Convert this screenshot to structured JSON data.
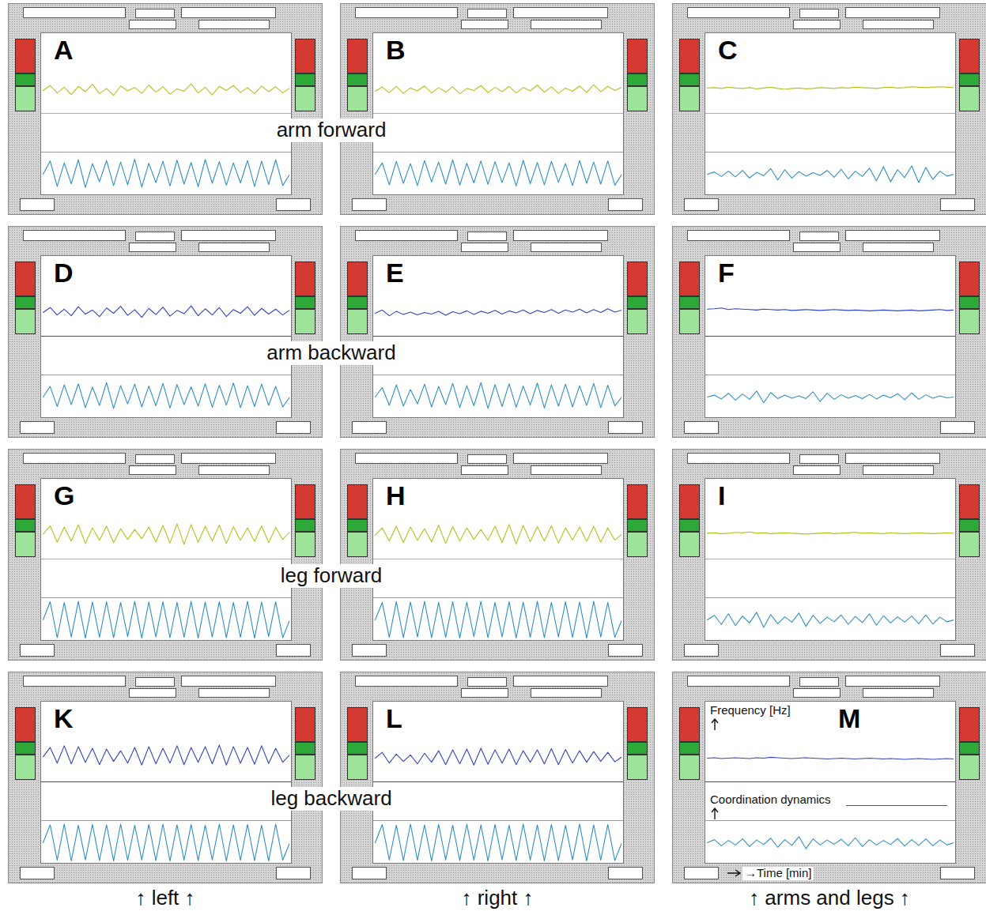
{
  "row_labels": [
    "arm forward",
    "arm backward",
    "leg forward",
    "leg backward"
  ],
  "column_labels": [
    "↑ left ↑",
    "↑ right ↑",
    "↑ arms and legs ↑"
  ],
  "chart_data": [
    {
      "type": "line",
      "title": "A",
      "ylim": [
        0,
        100
      ],
      "tick_labels": false,
      "series": [
        {
          "color": "#b5c21c",
          "values": [
            50,
            62,
            44,
            58,
            40,
            60,
            47,
            65,
            42,
            55,
            38,
            61,
            49,
            57,
            43,
            63,
            46,
            59,
            41,
            54,
            48,
            66,
            44,
            58,
            39,
            60,
            50,
            62,
            45,
            57,
            42,
            61,
            47,
            59,
            44,
            56
          ]
        },
        {
          "color": "#2f8fc4",
          "values": [
            50,
            85,
            18,
            80,
            25,
            88,
            15,
            78,
            30,
            86,
            20,
            82,
            22,
            90,
            16,
            79,
            28,
            84,
            19,
            87,
            24,
            81,
            17,
            89,
            26,
            83,
            21,
            80,
            27,
            86,
            18,
            84,
            23,
            88,
            20,
            50
          ]
        }
      ]
    },
    {
      "type": "line",
      "title": "B",
      "ylim": [
        0,
        100
      ],
      "tick_labels": false,
      "series": [
        {
          "color": "#b5c21c",
          "values": [
            48,
            58,
            45,
            60,
            43,
            56,
            49,
            61,
            44,
            57,
            46,
            59,
            42,
            55,
            50,
            62,
            45,
            58,
            47,
            60,
            44,
            57,
            49,
            63,
            46,
            59,
            43,
            56,
            48,
            61,
            45,
            64,
            47,
            60,
            50,
            58
          ]
        },
        {
          "color": "#2f8fc4",
          "values": [
            50,
            80,
            22,
            84,
            26,
            78,
            20,
            86,
            30,
            82,
            24,
            88,
            21,
            79,
            27,
            85,
            23,
            83,
            28,
            80,
            19,
            87,
            25,
            81,
            22,
            84,
            29,
            78,
            20,
            86,
            26,
            82,
            24,
            85,
            21,
            50
          ]
        }
      ]
    },
    {
      "type": "line",
      "title": "C",
      "ylim": [
        0,
        100
      ],
      "tick_labels": false,
      "series": [
        {
          "color": "#b5c21c",
          "values": [
            56,
            57,
            55,
            58,
            56,
            55,
            57,
            54,
            56,
            58,
            55,
            53,
            55,
            56,
            54,
            55,
            57,
            56,
            55,
            57,
            56,
            58,
            57,
            56,
            55,
            57,
            58,
            56,
            57,
            59,
            58,
            57,
            58,
            59,
            58,
            57
          ]
        },
        {
          "color": "#2f8fc4",
          "values": [
            50,
            56,
            44,
            58,
            43,
            60,
            40,
            55,
            46,
            65,
            35,
            62,
            40,
            57,
            45,
            54,
            47,
            60,
            42,
            63,
            38,
            58,
            44,
            66,
            33,
            70,
            30,
            62,
            41,
            72,
            28,
            68,
            36,
            58,
            45,
            50
          ]
        }
      ]
    },
    {
      "type": "line",
      "title": "D",
      "ylim": [
        0,
        100
      ],
      "tick_labels": false,
      "series": [
        {
          "color": "#3344c0",
          "values": [
            52,
            64,
            46,
            60,
            44,
            66,
            48,
            58,
            42,
            63,
            50,
            67,
            45,
            59,
            40,
            62,
            47,
            65,
            43,
            57,
            49,
            68,
            44,
            61,
            46,
            64,
            42,
            59,
            50,
            66,
            45,
            62,
            48,
            60,
            46,
            58
          ]
        },
        {
          "color": "#2f8fc4",
          "values": [
            50,
            78,
            25,
            82,
            30,
            85,
            22,
            76,
            28,
            88,
            20,
            80,
            32,
            84,
            24,
            79,
            27,
            86,
            21,
            83,
            30,
            77,
            26,
            85,
            23,
            81,
            29,
            87,
            22,
            80,
            25,
            84,
            28,
            78,
            24,
            50
          ]
        }
      ]
    },
    {
      "type": "line",
      "title": "E",
      "ylim": [
        0,
        100
      ],
      "tick_labels": false,
      "series": [
        {
          "color": "#3344c0",
          "values": [
            50,
            58,
            44,
            55,
            47,
            53,
            46,
            52,
            48,
            55,
            45,
            54,
            49,
            56,
            47,
            55,
            50,
            57,
            48,
            56,
            51,
            58,
            49,
            57,
            52,
            59,
            50,
            58,
            53,
            60,
            51,
            59,
            52,
            61,
            53,
            58
          ]
        },
        {
          "color": "#2f8fc4",
          "values": [
            50,
            75,
            28,
            82,
            26,
            70,
            32,
            84,
            24,
            78,
            30,
            86,
            22,
            80,
            27,
            88,
            20,
            83,
            25,
            85,
            23,
            79,
            29,
            87,
            21,
            82,
            26,
            84,
            24,
            80,
            28,
            86,
            22,
            81,
            27,
            50
          ]
        }
      ]
    },
    {
      "type": "line",
      "title": "F",
      "ylim": [
        0,
        100
      ],
      "tick_labels": false,
      "series": [
        {
          "color": "#3344c0",
          "values": [
            60,
            61,
            63,
            59,
            61,
            60,
            59,
            58,
            60,
            59,
            58,
            59,
            57,
            58,
            59,
            58,
            57,
            58,
            59,
            58,
            57,
            58,
            57,
            56,
            57,
            58,
            57,
            56,
            57,
            58,
            56,
            57,
            58,
            59,
            57,
            58
          ]
        },
        {
          "color": "#2f8fc4",
          "values": [
            50,
            55,
            45,
            60,
            42,
            58,
            44,
            66,
            35,
            62,
            46,
            55,
            47,
            53,
            46,
            64,
            38,
            60,
            44,
            56,
            47,
            54,
            46,
            57,
            45,
            55,
            48,
            59,
            43,
            61,
            44,
            56,
            47,
            53,
            48,
            50
          ]
        }
      ]
    },
    {
      "type": "line",
      "title": "G",
      "ylim": [
        0,
        100
      ],
      "tick_labels": false,
      "series": [
        {
          "color": "#b5c21c",
          "values": [
            55,
            75,
            35,
            72,
            38,
            78,
            32,
            70,
            40,
            74,
            34,
            68,
            42,
            66,
            44,
            72,
            36,
            76,
            33,
            80,
            30,
            78,
            35,
            74,
            38,
            77,
            32,
            73,
            40,
            70,
            37,
            75,
            34,
            71,
            42,
            60
          ]
        },
        {
          "color": "#2f8fc4",
          "values": [
            50,
            98,
            3,
            96,
            5,
            99,
            2,
            97,
            4,
            98,
            3,
            96,
            6,
            99,
            2,
            97,
            5,
            98,
            3,
            96,
            4,
            99,
            2,
            97,
            5,
            98,
            3,
            96,
            4,
            99,
            2,
            97,
            6,
            98,
            3,
            50
          ]
        }
      ]
    },
    {
      "type": "line",
      "title": "H",
      "ylim": [
        0,
        100
      ],
      "tick_labels": false,
      "series": [
        {
          "color": "#b5c21c",
          "values": [
            52,
            70,
            38,
            74,
            34,
            72,
            40,
            68,
            36,
            76,
            32,
            73,
            38,
            70,
            42,
            66,
            40,
            74,
            34,
            78,
            31,
            76,
            36,
            73,
            38,
            75,
            33,
            70,
            41,
            72,
            37,
            74,
            35,
            70,
            40,
            55
          ]
        },
        {
          "color": "#2f8fc4",
          "values": [
            50,
            96,
            4,
            98,
            3,
            97,
            5,
            99,
            3,
            96,
            4,
            98,
            2,
            97,
            6,
            99,
            3,
            96,
            5,
            98,
            2,
            97,
            4,
            99,
            3,
            96,
            5,
            98,
            4,
            97,
            2,
            99,
            5,
            96,
            4,
            50
          ]
        }
      ]
    },
    {
      "type": "line",
      "title": "I",
      "ylim": [
        0,
        100
      ],
      "tick_labels": false,
      "series": [
        {
          "color": "#b5c21c",
          "values": [
            57,
            58,
            56,
            57,
            59,
            58,
            60,
            57,
            58,
            56,
            57,
            58,
            57,
            56,
            55,
            56,
            57,
            58,
            56,
            57,
            58,
            59,
            57,
            58,
            57,
            56,
            58,
            57,
            56,
            57,
            58,
            57,
            56,
            57,
            58,
            57
          ]
        },
        {
          "color": "#2f8fc4",
          "values": [
            50,
            62,
            38,
            66,
            35,
            60,
            42,
            70,
            30,
            64,
            40,
            58,
            44,
            68,
            33,
            62,
            41,
            57,
            45,
            63,
            38,
            59,
            43,
            66,
            36,
            61,
            42,
            58,
            44,
            60,
            40,
            63,
            39,
            57,
            45,
            50
          ]
        }
      ]
    },
    {
      "type": "line",
      "title": "K",
      "ylim": [
        0,
        100
      ],
      "tick_labels": false,
      "series": [
        {
          "color": "#3344c0",
          "values": [
            55,
            78,
            40,
            82,
            38,
            80,
            42,
            76,
            36,
            74,
            44,
            70,
            40,
            78,
            35,
            80,
            38,
            76,
            40,
            82,
            36,
            78,
            42,
            80,
            38,
            84,
            35,
            80,
            40,
            78,
            37,
            82,
            39,
            76,
            42,
            60
          ]
        },
        {
          "color": "#2f8fc4",
          "values": [
            50,
            97,
            4,
            99,
            2,
            96,
            5,
            98,
            3,
            97,
            2,
            99,
            4,
            96,
            5,
            98,
            3,
            99,
            2,
            97,
            4,
            98,
            3,
            96,
            5,
            99,
            2,
            97,
            4,
            98,
            3,
            96,
            2,
            99,
            4,
            50
          ]
        }
      ]
    },
    {
      "type": "line",
      "title": "L",
      "ylim": [
        0,
        100
      ],
      "tick_labels": false,
      "series": [
        {
          "color": "#3344c0",
          "values": [
            52,
            66,
            40,
            62,
            44,
            60,
            38,
            64,
            42,
            70,
            36,
            72,
            38,
            74,
            35,
            76,
            37,
            72,
            40,
            74,
            36,
            70,
            42,
            72,
            38,
            75,
            36,
            73,
            40,
            70,
            42,
            68,
            44,
            66,
            43,
            55
          ]
        },
        {
          "color": "#2f8fc4",
          "values": [
            50,
            98,
            5,
            96,
            3,
            99,
            4,
            97,
            2,
            98,
            5,
            96,
            3,
            99,
            4,
            97,
            2,
            98,
            5,
            96,
            3,
            99,
            4,
            97,
            2,
            98,
            3,
            96,
            5,
            99,
            2,
            97,
            4,
            98,
            3,
            50
          ]
        }
      ]
    },
    {
      "type": "line",
      "title": "M",
      "ylim": [
        0,
        100
      ],
      "tick_labels": false,
      "xlabel": "→Time [min]",
      "series": [
        {
          "name": "Frequency [Hz]",
          "color": "#3344c0",
          "values": [
            52,
            53,
            51,
            52,
            53,
            52,
            51,
            53,
            52,
            54,
            53,
            52,
            51,
            52,
            53,
            52,
            51,
            50,
            51,
            52,
            51,
            50,
            51,
            52,
            51,
            50,
            51,
            50,
            49,
            50,
            51,
            50,
            49,
            50,
            51,
            50
          ]
        },
        {
          "name": "Coordination dynamics",
          "color": "#2f8fc4",
          "values": [
            50,
            58,
            42,
            56,
            44,
            60,
            40,
            57,
            45,
            62,
            38,
            58,
            43,
            66,
            34,
            60,
            44,
            57,
            46,
            59,
            42,
            63,
            40,
            58,
            44,
            56,
            45,
            61,
            41,
            58,
            43,
            60,
            42,
            57,
            44,
            50
          ]
        }
      ]
    }
  ]
}
